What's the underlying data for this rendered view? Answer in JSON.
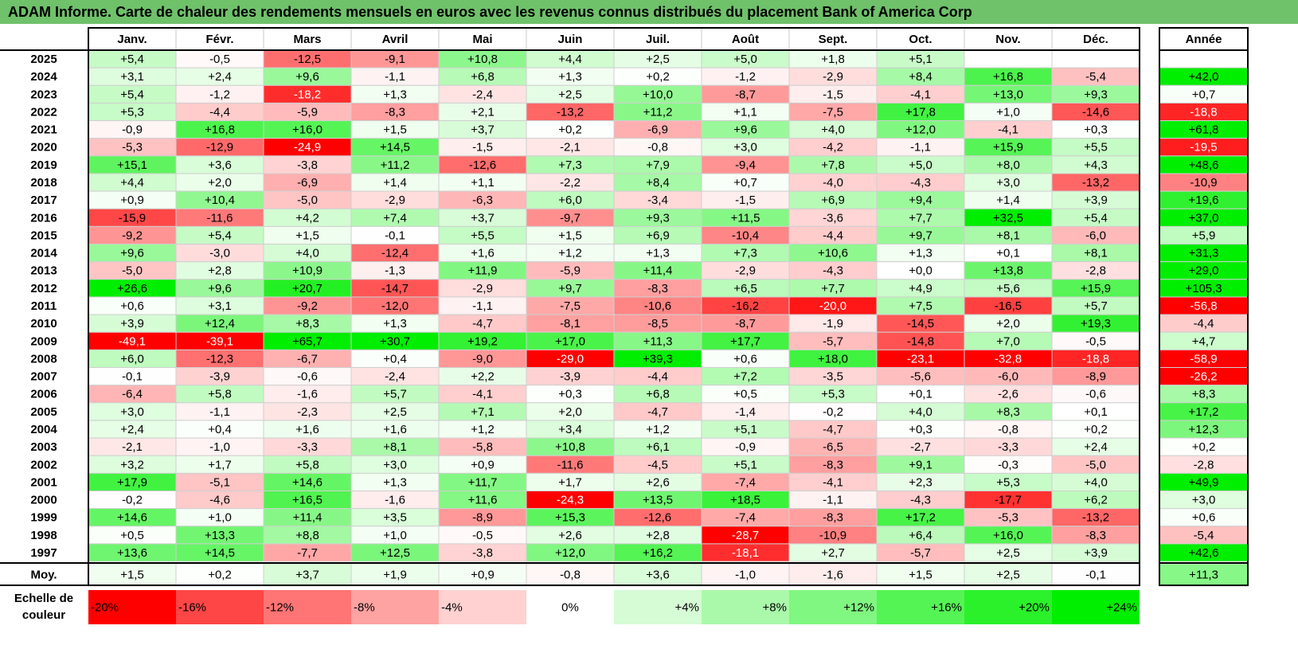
{
  "title": "ADAM Informe. Carte de chaleur des rendements mensuels en euros avec les revenus connus distribués du placement Bank of America Corp",
  "chart_data": {
    "type": "heatmap",
    "months": [
      "Janv.",
      "Févr.",
      "Mars",
      "Avril",
      "Mai",
      "Juin",
      "Juil.",
      "Août",
      "Sept.",
      "Oct.",
      "Nov.",
      "Déc."
    ],
    "year_header": "Année",
    "rows": [
      {
        "year": "2025",
        "values": [
          "+5,4",
          "-0,5",
          "-12,5",
          "-9,1",
          "+10,8",
          "+4,4",
          "+2,5",
          "+5,0",
          "+1,8",
          "+5,1",
          "",
          ""
        ],
        "annual": ""
      },
      {
        "year": "2024",
        "values": [
          "+3,1",
          "+2,4",
          "+9,6",
          "-1,1",
          "+6,8",
          "+1,3",
          "+0,2",
          "-1,2",
          "-2,9",
          "+8,4",
          "+16,8",
          "-5,4"
        ],
        "annual": "+42,0"
      },
      {
        "year": "2023",
        "values": [
          "+5,4",
          "-1,2",
          "-18,2",
          "+1,3",
          "-2,4",
          "+2,5",
          "+10,0",
          "-8,7",
          "-1,5",
          "-4,1",
          "+13,0",
          "+9,3"
        ],
        "annual": "+0,7"
      },
      {
        "year": "2022",
        "values": [
          "+5,3",
          "-4,4",
          "-5,9",
          "-8,3",
          "+2,1",
          "-13,2",
          "+11,2",
          "+1,1",
          "-7,5",
          "+17,8",
          "+1,0",
          "-14,6"
        ],
        "annual": "-18,8"
      },
      {
        "year": "2021",
        "values": [
          "-0,9",
          "+16,8",
          "+16,0",
          "+1,5",
          "+3,7",
          "+0,2",
          "-6,9",
          "+9,6",
          "+4,0",
          "+12,0",
          "-4,1",
          "+0,3"
        ],
        "annual": "+61,8"
      },
      {
        "year": "2020",
        "values": [
          "-5,3",
          "-12,9",
          "-24,9",
          "+14,5",
          "-1,5",
          "-2,1",
          "-0,8",
          "+3,0",
          "-4,2",
          "-1,1",
          "+15,9",
          "+5,5"
        ],
        "annual": "-19,5"
      },
      {
        "year": "2019",
        "values": [
          "+15,1",
          "+3,6",
          "-3,8",
          "+11,2",
          "-12,6",
          "+7,3",
          "+7,9",
          "-9,4",
          "+7,8",
          "+5,0",
          "+8,0",
          "+4,3"
        ],
        "annual": "+48,6"
      },
      {
        "year": "2018",
        "values": [
          "+4,4",
          "+2,0",
          "-6,9",
          "+1,4",
          "+1,1",
          "-2,2",
          "+8,4",
          "+0,7",
          "-4,0",
          "-4,3",
          "+3,0",
          "-13,2"
        ],
        "annual": "-10,9"
      },
      {
        "year": "2017",
        "values": [
          "+0,9",
          "+10,4",
          "-5,0",
          "-2,9",
          "-6,3",
          "+6,0",
          "-3,4",
          "-1,5",
          "+6,9",
          "+9,4",
          "+1,4",
          "+3,9"
        ],
        "annual": "+19,6"
      },
      {
        "year": "2016",
        "values": [
          "-15,9",
          "-11,6",
          "+4,2",
          "+7,4",
          "+3,7",
          "-9,7",
          "+9,3",
          "+11,5",
          "-3,6",
          "+7,7",
          "+32,5",
          "+5,4"
        ],
        "annual": "+37,0"
      },
      {
        "year": "2015",
        "values": [
          "-9,2",
          "+5,4",
          "+1,5",
          "-0,1",
          "+5,5",
          "+1,5",
          "+6,9",
          "-10,4",
          "-4,4",
          "+9,7",
          "+8,1",
          "-6,0"
        ],
        "annual": "+5,9"
      },
      {
        "year": "2014",
        "values": [
          "+9,6",
          "-3,0",
          "+4,0",
          "-12,4",
          "+1,6",
          "+1,2",
          "+1,3",
          "+7,3",
          "+10,6",
          "+1,3",
          "+0,1",
          "+8,1"
        ],
        "annual": "+31,3"
      },
      {
        "year": "2013",
        "values": [
          "-5,0",
          "+2,8",
          "+10,9",
          "-1,3",
          "+11,9",
          "-5,9",
          "+11,4",
          "-2,9",
          "-4,3",
          "+0,0",
          "+13,8",
          "-2,8"
        ],
        "annual": "+29,0"
      },
      {
        "year": "2012",
        "values": [
          "+26,6",
          "+9,6",
          "+20,7",
          "-14,7",
          "-2,9",
          "+9,7",
          "-8,3",
          "+6,5",
          "+7,7",
          "+4,9",
          "+5,6",
          "+15,9"
        ],
        "annual": "+105,3"
      },
      {
        "year": "2011",
        "values": [
          "+0,6",
          "+3,1",
          "-9,2",
          "-12,0",
          "-1,1",
          "-7,5",
          "-10,6",
          "-16,2",
          "-20,0",
          "+7,5",
          "-16,5",
          "+5,7"
        ],
        "annual": "-56,8"
      },
      {
        "year": "2010",
        "values": [
          "+3,9",
          "+12,4",
          "+8,3",
          "+1,3",
          "-4,7",
          "-8,1",
          "-8,5",
          "-8,7",
          "-1,9",
          "-14,5",
          "+2,0",
          "+19,3"
        ],
        "annual": "-4,4"
      },
      {
        "year": "2009",
        "values": [
          "-49,1",
          "-39,1",
          "+65,7",
          "+30,7",
          "+19,2",
          "+17,0",
          "+11,3",
          "+17,7",
          "-5,7",
          "-14,8",
          "+7,0",
          "-0,5"
        ],
        "annual": "+4,7"
      },
      {
        "year": "2008",
        "values": [
          "+6,0",
          "-12,3",
          "-6,7",
          "+0,4",
          "-9,0",
          "-29,0",
          "+39,3",
          "+0,6",
          "+18,0",
          "-23,1",
          "-32,8",
          "-18,8"
        ],
        "annual": "-58,9"
      },
      {
        "year": "2007",
        "values": [
          "-0,1",
          "-3,9",
          "-0,6",
          "-2,4",
          "+2,2",
          "-3,9",
          "-4,4",
          "+7,2",
          "-3,5",
          "-5,6",
          "-6,0",
          "-8,9"
        ],
        "annual": "-26,2"
      },
      {
        "year": "2006",
        "values": [
          "-6,4",
          "+5,8",
          "-1,6",
          "+5,7",
          "-4,1",
          "+0,3",
          "+6,8",
          "+0,5",
          "+5,3",
          "+0,1",
          "-2,6",
          "-0,6"
        ],
        "annual": "+8,3"
      },
      {
        "year": "2005",
        "values": [
          "+3,0",
          "-1,1",
          "-2,3",
          "+2,5",
          "+7,1",
          "+2,0",
          "-4,7",
          "-1,4",
          "-0,2",
          "+4,0",
          "+8,3",
          "+0,1"
        ],
        "annual": "+17,2"
      },
      {
        "year": "2004",
        "values": [
          "+2,4",
          "+0,4",
          "+1,6",
          "+1,6",
          "+1,2",
          "+3,4",
          "+1,2",
          "+5,1",
          "-4,7",
          "+0,3",
          "-0,8",
          "+0,2"
        ],
        "annual": "+12,3"
      },
      {
        "year": "2003",
        "values": [
          "-2,1",
          "-1,0",
          "-3,3",
          "+8,1",
          "-5,8",
          "+10,8",
          "+6,1",
          "-0,9",
          "-6,5",
          "-2,7",
          "-3,3",
          "+2,4"
        ],
        "annual": "+0,2"
      },
      {
        "year": "2002",
        "values": [
          "+3,2",
          "+1,7",
          "+5,8",
          "+3,0",
          "+0,9",
          "-11,6",
          "-4,5",
          "+5,1",
          "-8,3",
          "+9,1",
          "-0,3",
          "-5,0"
        ],
        "annual": "-2,8"
      },
      {
        "year": "2001",
        "values": [
          "+17,9",
          "-5,1",
          "+14,6",
          "+1,3",
          "+11,7",
          "+1,7",
          "+2,6",
          "-7,4",
          "-4,1",
          "+2,3",
          "+5,3",
          "+4,0"
        ],
        "annual": "+49,9"
      },
      {
        "year": "2000",
        "values": [
          "-0,2",
          "-4,6",
          "+16,5",
          "-1,6",
          "+11,6",
          "-24,3",
          "+13,5",
          "+18,5",
          "-1,1",
          "-4,3",
          "-17,7",
          "+6,2"
        ],
        "annual": "+3,0"
      },
      {
        "year": "1999",
        "values": [
          "+14,6",
          "+1,0",
          "+11,4",
          "+3,5",
          "-8,9",
          "+15,3",
          "-12,6",
          "-7,4",
          "-8,3",
          "+17,2",
          "-5,3",
          "-13,2"
        ],
        "annual": "+0,6"
      },
      {
        "year": "1998",
        "values": [
          "+0,5",
          "+13,3",
          "+8,8",
          "+1,0",
          "-0,5",
          "+2,6",
          "+2,8",
          "-28,7",
          "-10,9",
          "+6,4",
          "+16,0",
          "-8,3"
        ],
        "annual": "-5,4"
      },
      {
        "year": "1997",
        "values": [
          "+13,6",
          "+14,5",
          "-7,7",
          "+12,5",
          "-3,8",
          "+12,0",
          "+16,2",
          "-18,1",
          "+2,7",
          "-5,7",
          "+2,5",
          "+3,9"
        ],
        "annual": "+42,6"
      }
    ],
    "average": {
      "label": "Moy.",
      "values": [
        "+1,5",
        "+0,2",
        "+3,7",
        "+1,9",
        "+0,9",
        "-0,8",
        "+3,6",
        "-1,0",
        "-1,6",
        "+1,5",
        "+2,5",
        "-0,1"
      ],
      "annual": "+11,3"
    },
    "scale": {
      "label_line1": "Echelle de",
      "label_line2": "couleur",
      "steps": [
        {
          "label": "-20%",
          "value": -20
        },
        {
          "label": "-16%",
          "value": -16
        },
        {
          "label": "-12%",
          "value": -12
        },
        {
          "label": "-8%",
          "value": -8
        },
        {
          "label": "-4%",
          "value": -4
        },
        {
          "label": "0%",
          "value": 0
        },
        {
          "label": "+4%",
          "value": 4
        },
        {
          "label": "+8%",
          "value": 8
        },
        {
          "label": "+12%",
          "value": 12
        },
        {
          "label": "+16%",
          "value": 16
        },
        {
          "label": "+20%",
          "value": 20
        },
        {
          "label": "+24%",
          "value": 24
        }
      ]
    },
    "colors": {
      "negative_max": "#ff0000",
      "neutral": "#ffffff",
      "positive_max": "#00ee00",
      "title_background": "#6fc16a"
    }
  }
}
